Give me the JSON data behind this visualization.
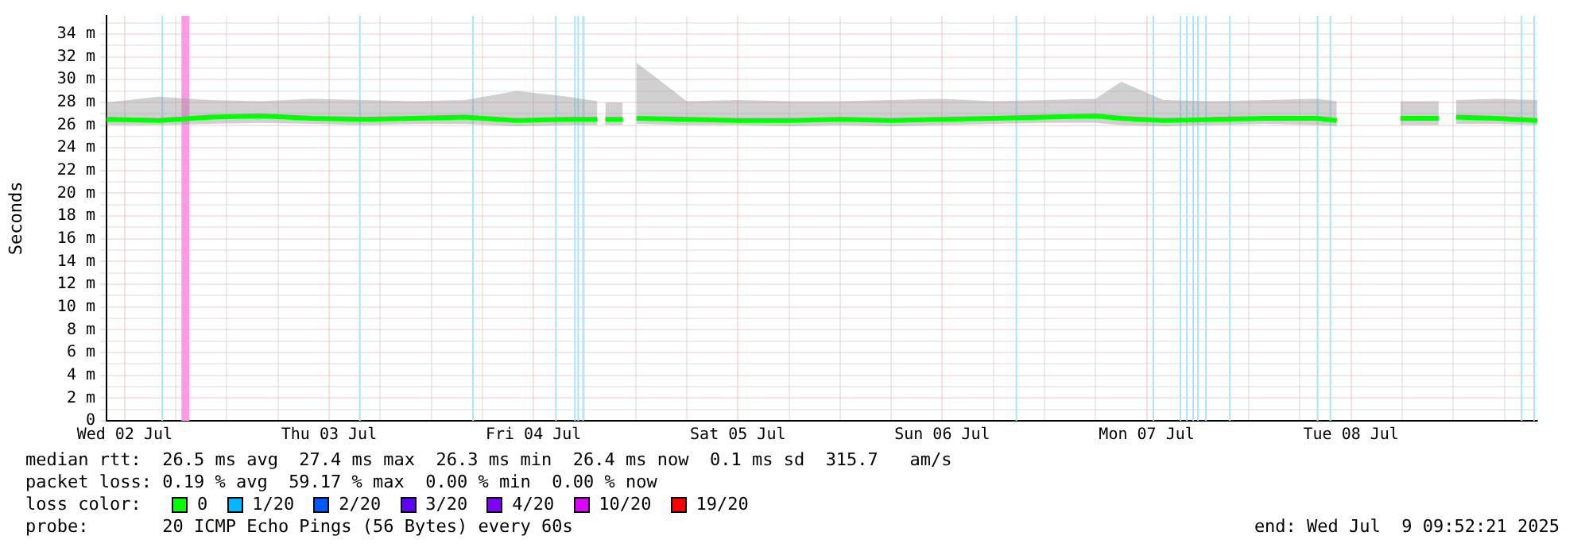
{
  "chart_data": {
    "type": "line",
    "ylabel": "Seconds",
    "legend": "bottom",
    "legend_title": "loss color:",
    "grid": true,
    "marker": "none",
    "line_style": "solid",
    "ylim": [
      0,
      35.6
    ],
    "yticks": [
      {
        "value": 0,
        "label": "0"
      },
      {
        "value": 1,
        "label": null
      },
      {
        "value": 2,
        "label": "2 m"
      },
      {
        "value": 3,
        "label": null
      },
      {
        "value": 4,
        "label": "4 m"
      },
      {
        "value": 5,
        "label": null
      },
      {
        "value": 6,
        "label": "6 m"
      },
      {
        "value": 7,
        "label": null
      },
      {
        "value": 8,
        "label": "8 m"
      },
      {
        "value": 9,
        "label": null
      },
      {
        "value": 10,
        "label": "10 m"
      },
      {
        "value": 11,
        "label": null
      },
      {
        "value": 12,
        "label": "12 m"
      },
      {
        "value": 13,
        "label": null
      },
      {
        "value": 14,
        "label": "14 m"
      },
      {
        "value": 15,
        "label": null
      },
      {
        "value": 16,
        "label": "16 m"
      },
      {
        "value": 17,
        "label": null
      },
      {
        "value": 18,
        "label": "18 m"
      },
      {
        "value": 19,
        "label": null
      },
      {
        "value": 20,
        "label": "20 m"
      },
      {
        "value": 21,
        "label": null
      },
      {
        "value": 22,
        "label": "22 m"
      },
      {
        "value": 23,
        "label": null
      },
      {
        "value": 24,
        "label": "24 m"
      },
      {
        "value": 25,
        "label": null
      },
      {
        "value": 26,
        "label": "26 m"
      },
      {
        "value": 27,
        "label": null
      },
      {
        "value": 28,
        "label": "28 m"
      },
      {
        "value": 29,
        "label": null
      },
      {
        "value": 30,
        "label": "30 m"
      },
      {
        "value": 31,
        "label": null
      },
      {
        "value": 32,
        "label": "32 m"
      },
      {
        "value": 33,
        "label": null
      },
      {
        "value": 34,
        "label": "34 m"
      },
      {
        "value": 35,
        "label": null
      }
    ],
    "xlim": [
      "2025-07-02T09:52",
      "2025-07-09T09:52"
    ],
    "xticks": [
      {
        "value": "2025-07-02T12:00",
        "label": "Wed 02 Jul"
      },
      {
        "value": "2025-07-02T18:00",
        "label": null
      },
      {
        "value": "2025-07-03T00:00",
        "label": null
      },
      {
        "value": "2025-07-03T06:00",
        "label": null
      },
      {
        "value": "2025-07-03T12:00",
        "label": "Thu 03 Jul"
      },
      {
        "value": "2025-07-03T18:00",
        "label": null
      },
      {
        "value": "2025-07-04T00:00",
        "label": null
      },
      {
        "value": "2025-07-04T06:00",
        "label": null
      },
      {
        "value": "2025-07-04T12:00",
        "label": "Fri 04 Jul"
      },
      {
        "value": "2025-07-04T18:00",
        "label": null
      },
      {
        "value": "2025-07-05T00:00",
        "label": null
      },
      {
        "value": "2025-07-05T06:00",
        "label": null
      },
      {
        "value": "2025-07-05T12:00",
        "label": "Sat 05 Jul"
      },
      {
        "value": "2025-07-05T18:00",
        "label": null
      },
      {
        "value": "2025-07-06T00:00",
        "label": null
      },
      {
        "value": "2025-07-06T06:00",
        "label": null
      },
      {
        "value": "2025-07-06T12:00",
        "label": "Sun 06 Jul"
      },
      {
        "value": "2025-07-06T18:00",
        "label": null
      },
      {
        "value": "2025-07-07T00:00",
        "label": null
      },
      {
        "value": "2025-07-07T06:00",
        "label": null
      },
      {
        "value": "2025-07-07T12:00",
        "label": "Mon 07 Jul"
      },
      {
        "value": "2025-07-07T18:00",
        "label": null
      },
      {
        "value": "2025-07-08T00:00",
        "label": null
      },
      {
        "value": "2025-07-08T06:00",
        "label": null
      },
      {
        "value": "2025-07-08T12:00",
        "label": "Tue 08 Jul"
      },
      {
        "value": "2025-07-08T18:00",
        "label": null
      },
      {
        "value": "2025-07-09T00:00",
        "label": null
      },
      {
        "value": "2025-07-09T06:00",
        "label": null
      }
    ],
    "series": [
      {
        "name": "0",
        "color": "#00ff00",
        "x": [
          "2025-07-02T09:52",
          "2025-07-02T16:00",
          "2025-07-02T22:00",
          "2025-07-03T04:00",
          "2025-07-03T10:00",
          "2025-07-03T16:00",
          "2025-07-03T22:00",
          "2025-07-04T04:00",
          "2025-07-04T10:00",
          "2025-07-04T16:00",
          "2025-07-04T19:30",
          "2025-07-04T19:45",
          "2025-07-04T20:26",
          "2025-07-04T22:29",
          "2025-07-04T23:00",
          "2025-07-05T00:05",
          "2025-07-05T06:00",
          "2025-07-05T12:00",
          "2025-07-05T18:00",
          "2025-07-06T00:00",
          "2025-07-06T06:00",
          "2025-07-06T12:00",
          "2025-07-06T18:00",
          "2025-07-07T00:00",
          "2025-07-07T06:00",
          "2025-07-07T09:00",
          "2025-07-07T14:00",
          "2025-07-07T20:00",
          "2025-07-08T02:00",
          "2025-07-08T08:00",
          "2025-07-08T10:19",
          "2025-07-08T14:00",
          "2025-07-08T17:47",
          "2025-07-08T22:17",
          "2025-07-08T23:00",
          "2025-07-09T00:20",
          "2025-07-09T05:00",
          "2025-07-09T09:52"
        ],
        "values": [
          26.5,
          26.4,
          26.7,
          26.8,
          26.6,
          26.5,
          26.6,
          26.7,
          26.4,
          26.5,
          26.5,
          null,
          26.5,
          26.5,
          null,
          26.6,
          26.5,
          26.4,
          26.4,
          26.5,
          26.4,
          26.5,
          26.6,
          26.7,
          26.8,
          26.6,
          26.4,
          26.5,
          26.6,
          26.6,
          26.4,
          null,
          26.6,
          26.6,
          null,
          26.7,
          26.6,
          26.4
        ],
        "lower": [
          26.0,
          26.0,
          26.1,
          26.2,
          26.1,
          26.0,
          26.1,
          26.1,
          25.9,
          26.0,
          26.0,
          null,
          26.0,
          26.0,
          null,
          26.1,
          26.0,
          26.0,
          25.9,
          26.0,
          25.9,
          26.0,
          26.1,
          26.2,
          26.2,
          26.0,
          25.9,
          26.0,
          26.1,
          26.0,
          25.9,
          null,
          26.0,
          26.0,
          null,
          26.1,
          26.1,
          26.0
        ],
        "upper": [
          28.0,
          28.5,
          28.2,
          28.1,
          28.3,
          28.2,
          28.1,
          28.2,
          29.0,
          28.5,
          28.1,
          null,
          28.0,
          28.0,
          null,
          31.5,
          28.1,
          28.2,
          28.1,
          28.1,
          28.2,
          28.3,
          28.1,
          28.2,
          28.3,
          29.8,
          28.2,
          28.1,
          28.2,
          28.3,
          28.1,
          null,
          28.1,
          28.1,
          null,
          28.2,
          28.3,
          28.2
        ]
      },
      {
        "name": "1/20",
        "color": "#00b8ff"
      },
      {
        "name": "2/20",
        "color": "#0059ff"
      },
      {
        "name": "3/20",
        "color": "#5e00ff"
      },
      {
        "name": "4/20",
        "color": "#7e00ff"
      },
      {
        "name": "10/20",
        "color": "#dd00ff"
      },
      {
        "name": "19/20",
        "color": "#ff0000"
      }
    ],
    "ref_lines": [
      {
        "axis": "x",
        "value": "2025-07-02T16:25",
        "color": "#a8e4ff"
      },
      {
        "axis": "x",
        "value": "2025-07-03T15:37",
        "color": "#a8e4ff"
      },
      {
        "axis": "x",
        "value": "2025-07-04T04:54",
        "color": "#a8e4ff"
      },
      {
        "axis": "x",
        "value": "2025-07-04T14:38",
        "color": "#a8e4ff"
      },
      {
        "axis": "x",
        "value": "2025-07-04T16:52",
        "color": "#a8e4ff"
      },
      {
        "axis": "x",
        "value": "2025-07-04T17:15",
        "color": "#a8e4ff"
      },
      {
        "axis": "x",
        "value": "2025-07-04T17:49",
        "color": "#a8e4ff"
      },
      {
        "axis": "x",
        "value": "2025-07-06T20:42",
        "color": "#a8e4ff"
      },
      {
        "axis": "x",
        "value": "2025-07-07T12:47",
        "color": "#a8e4ff"
      },
      {
        "axis": "x",
        "value": "2025-07-07T15:58",
        "color": "#a8e4ff"
      },
      {
        "axis": "x",
        "value": "2025-07-07T16:43",
        "color": "#a8e4ff"
      },
      {
        "axis": "x",
        "value": "2025-07-07T17:28",
        "color": "#a8e4ff"
      },
      {
        "axis": "x",
        "value": "2025-07-07T18:02",
        "color": "#a8e4ff"
      },
      {
        "axis": "x",
        "value": "2025-07-07T18:58",
        "color": "#a8e4ff"
      },
      {
        "axis": "x",
        "value": "2025-07-07T21:46",
        "color": "#a8e4ff"
      },
      {
        "axis": "x",
        "value": "2025-07-08T08:04",
        "color": "#a8e4ff"
      },
      {
        "axis": "x",
        "value": "2025-07-08T09:34",
        "color": "#a8e4ff"
      },
      {
        "axis": "x",
        "value": "2025-07-09T08:01",
        "color": "#a8e4ff"
      },
      {
        "axis": "x",
        "value": "2025-07-09T09:30",
        "color": "#a8e4ff"
      }
    ],
    "bands": [
      {
        "axis": "x",
        "from": "2025-07-02T18:40",
        "to": "2025-07-02T19:36",
        "color": "#ff99e6"
      }
    ],
    "annotations": [
      "median rtt:  26.5 ms avg  27.4 ms max  26.3 ms min  26.4 ms now  0.1 ms sd  315.7   am/s",
      "packet loss: 0.19 % avg  59.17 % max  0.00 % min  0.00 % now",
      "probe:       20 ICMP Echo Pings (56 Bytes) every 60s",
      "end: Wed Jul  9 09:52:21 2025"
    ]
  }
}
